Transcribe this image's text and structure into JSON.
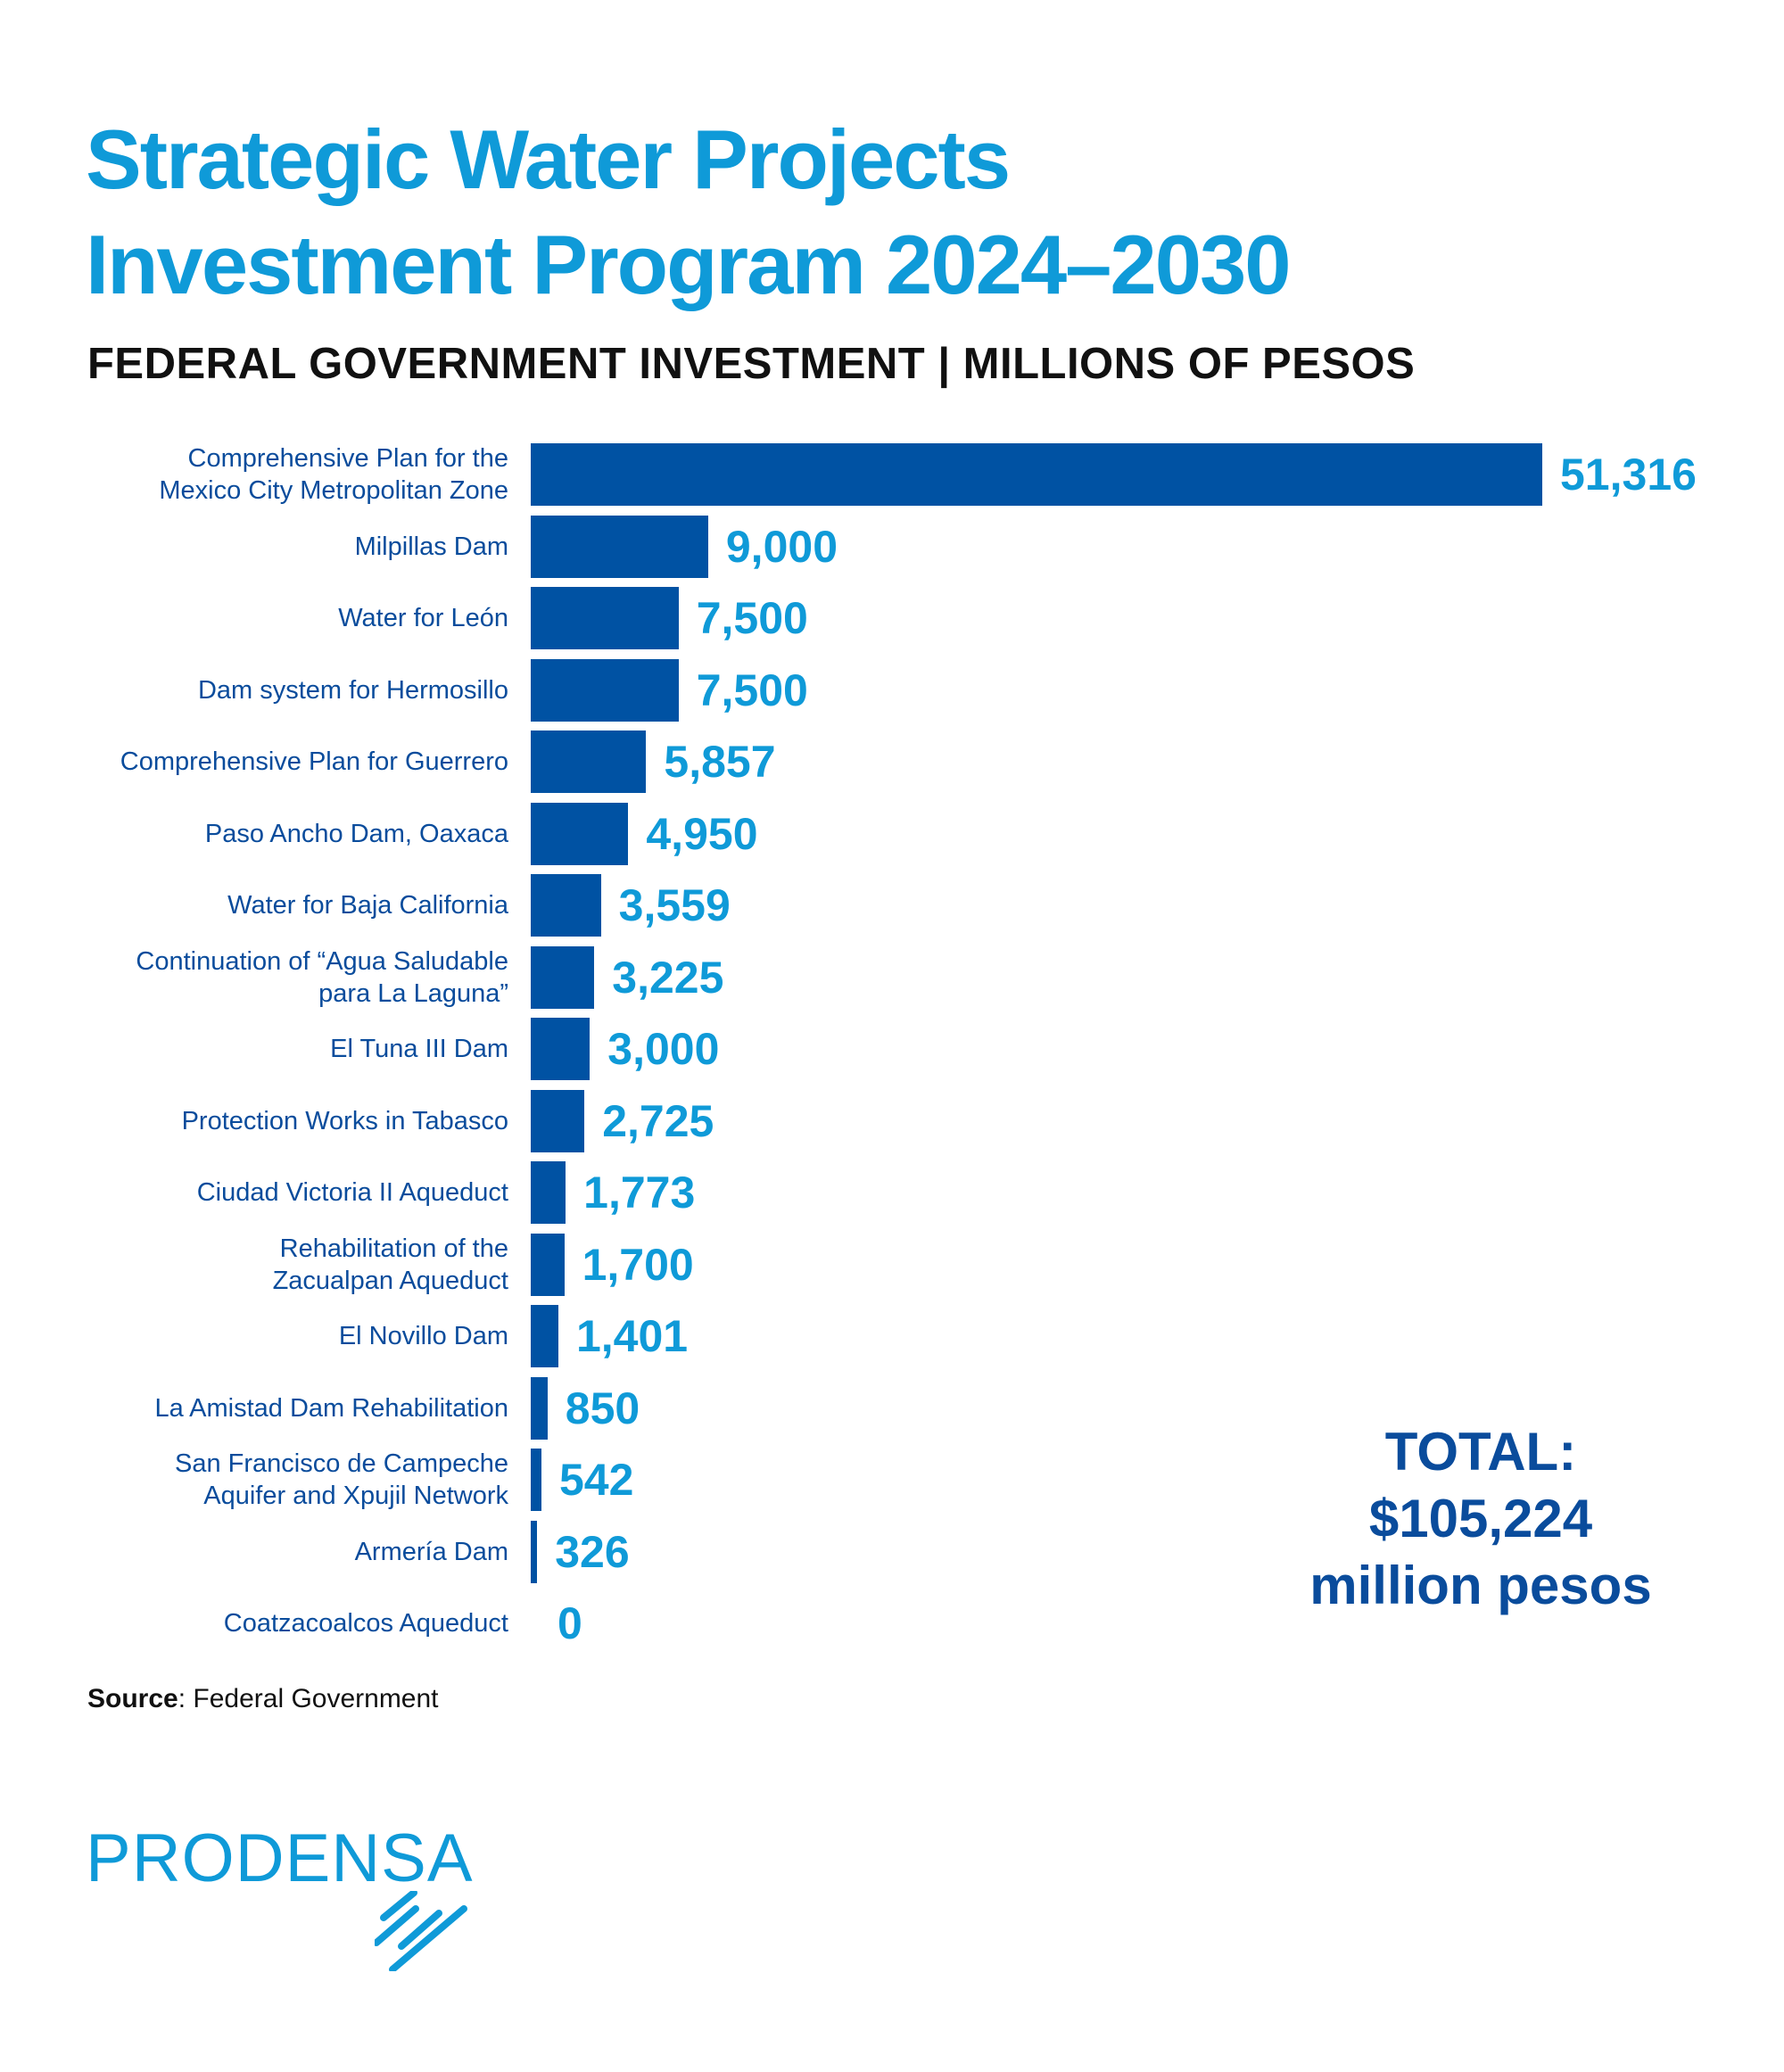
{
  "title_lines": [
    "Strategic Water Projects",
    "Investment Program 2024–2030"
  ],
  "subtitle": "FEDERAL GOVERNMENT INVESTMENT | MILLIONS OF PESOS",
  "chart_data": {
    "type": "bar",
    "orientation": "horizontal",
    "categories": [
      "Comprehensive Plan for the\nMexico City Metropolitan Zone",
      "Milpillas Dam",
      "Water for León",
      "Dam system for Hermosillo",
      "Comprehensive Plan for Guerrero",
      "Paso Ancho Dam, Oaxaca",
      "Water for Baja California",
      "Continuation of “Agua Saludable\npara La Laguna”",
      "El Tuna III Dam",
      "Protection Works in Tabasco",
      "Ciudad Victoria II Aqueduct",
      "Rehabilitation of the\nZacualpan Aqueduct",
      "El Novillo Dam",
      "La Amistad Dam Rehabilitation",
      "San Francisco de Campeche\nAquifer and Xpujil Network",
      "Armería Dam",
      "Coatzacoalcos Aqueduct"
    ],
    "values": [
      51316,
      9000,
      7500,
      7500,
      5857,
      4950,
      3559,
      3225,
      3000,
      2725,
      1773,
      1700,
      1401,
      850,
      542,
      326,
      0
    ],
    "value_labels": [
      "51,316",
      "9,000",
      "7,500",
      "7,500",
      "5,857",
      "4,950",
      "3,559",
      "3,225",
      "3,000",
      "2,725",
      "1,773",
      "1,700",
      "1,401",
      "850",
      "542",
      "326",
      "0"
    ],
    "bar_color": "#0052a3",
    "value_label_color": "#0f9ad8",
    "grid": false,
    "axes_visible": false
  },
  "total": {
    "label": "TOTAL:",
    "amount": "$105,224",
    "unit": "million pesos"
  },
  "source": {
    "label": "Source",
    "text": ": Federal Government"
  },
  "logo": {
    "text": "PRODENSA"
  },
  "colors": {
    "title": "#0f9ad8",
    "total": "#0a4c9c",
    "label": "#0a4c9c"
  }
}
